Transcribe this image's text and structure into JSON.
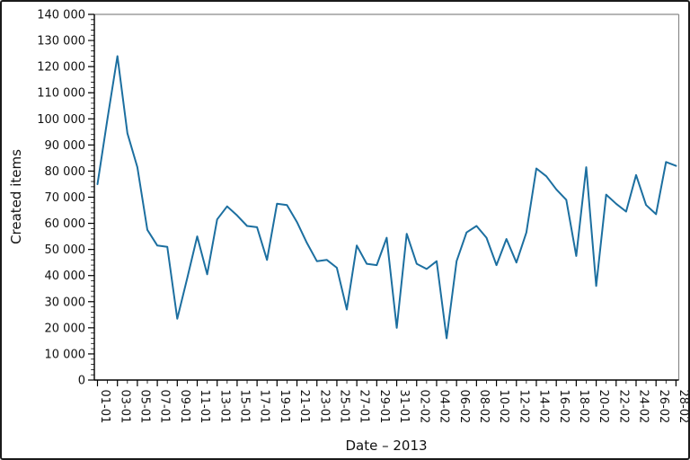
{
  "chart_data": {
    "type": "line",
    "title": "",
    "xlabel": "Date – 2013",
    "ylabel": "Created items",
    "legend": null,
    "grid": false,
    "line_color": "#1c6fa0",
    "background_color": "#ffffff",
    "ylim": [
      0,
      140000
    ],
    "y_major_step": 10000,
    "y_minor_step": 2000,
    "x_label_every_n_days": 2,
    "x": [
      "01-01",
      "02-01",
      "03-01",
      "04-01",
      "05-01",
      "06-01",
      "07-01",
      "08-01",
      "09-01",
      "10-01",
      "11-01",
      "12-01",
      "13-01",
      "14-01",
      "15-01",
      "16-01",
      "17-01",
      "18-01",
      "19-01",
      "20-01",
      "21-01",
      "22-01",
      "23-01",
      "24-01",
      "25-01",
      "26-01",
      "27-01",
      "28-01",
      "29-01",
      "30-01",
      "31-01",
      "01-02",
      "02-02",
      "03-02",
      "04-02",
      "05-02",
      "06-02",
      "07-02",
      "08-02",
      "09-02",
      "10-02",
      "11-02",
      "12-02",
      "13-02",
      "14-02",
      "15-02",
      "16-02",
      "17-02",
      "18-02",
      "19-02",
      "20-02",
      "21-02",
      "22-02",
      "23-02",
      "24-02",
      "25-02",
      "26-02",
      "27-02",
      "28-02"
    ],
    "values": [
      75000,
      100000,
      124000,
      94500,
      81500,
      57500,
      51500,
      51000,
      23500,
      39000,
      55000,
      40500,
      61500,
      66500,
      63000,
      59000,
      58500,
      46000,
      67500,
      67000,
      60500,
      52500,
      45500,
      46000,
      43000,
      27000,
      51500,
      44500,
      44000,
      54500,
      20000,
      56000,
      44500,
      42500,
      45500,
      16000,
      45500,
      56500,
      59000,
      54500,
      44000,
      54000,
      45000,
      56500,
      81000,
      78000,
      73000,
      69000,
      47500,
      81500,
      36000,
      71000,
      67500,
      64500,
      78500,
      67000,
      63500,
      83500,
      82000
    ]
  }
}
